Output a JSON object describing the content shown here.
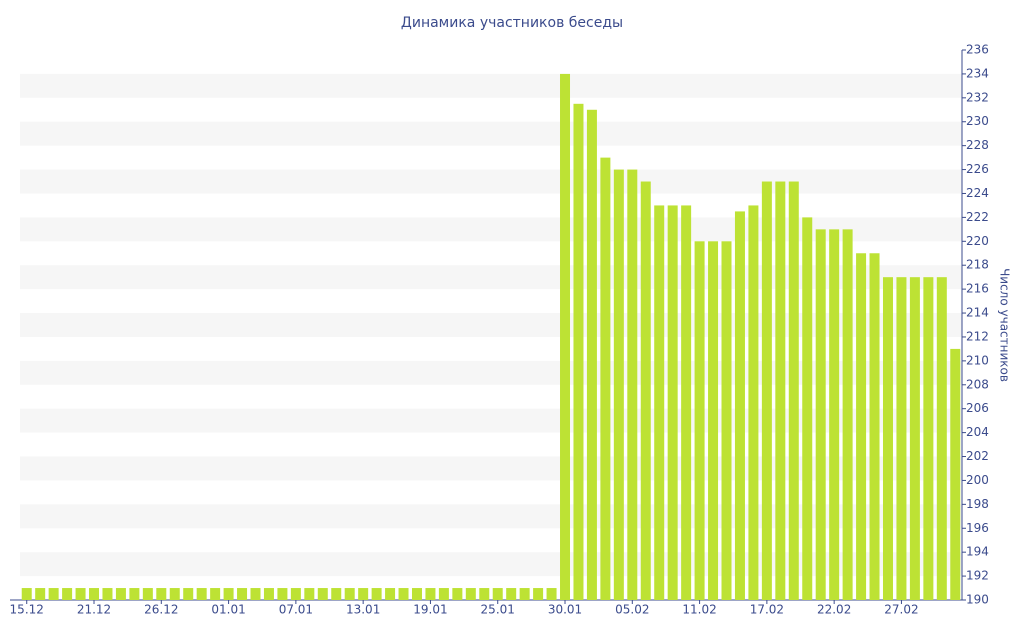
{
  "chart_data": {
    "type": "bar",
    "title": "Динамика участников беседы",
    "y_axis_label": "Число участников",
    "categories": [
      "15.12",
      null,
      null,
      null,
      null,
      "21.12",
      null,
      null,
      null,
      null,
      "26.12",
      null,
      null,
      null,
      null,
      "01.01",
      null,
      null,
      null,
      null,
      "07.01",
      null,
      null,
      null,
      null,
      "13.01",
      null,
      null,
      null,
      null,
      "19.01",
      null,
      null,
      null,
      null,
      "25.01",
      null,
      null,
      null,
      null,
      "30.01",
      null,
      null,
      null,
      null,
      "05.02",
      null,
      null,
      null,
      null,
      "11.02",
      null,
      null,
      null,
      null,
      "17.02",
      null,
      null,
      null,
      null,
      "22.02",
      null,
      null,
      null,
      null,
      "27.02",
      null,
      null,
      null,
      null
    ],
    "values": [
      191,
      191,
      191,
      191,
      191,
      191,
      191,
      191,
      191,
      191,
      191,
      191,
      191,
      191,
      191,
      191,
      191,
      191,
      191,
      191,
      191,
      191,
      191,
      191,
      191,
      191,
      191,
      191,
      191,
      191,
      191,
      191,
      191,
      191,
      191,
      191,
      191,
      191,
      191,
      191,
      234,
      231.5,
      231,
      227,
      226,
      226,
      225,
      223,
      223,
      223,
      220,
      220,
      220,
      222.5,
      223,
      225,
      225,
      225,
      222,
      221,
      221,
      221,
      219,
      219,
      217,
      217,
      217,
      217,
      217,
      211
    ],
    "color": "#bde234",
    "ylim": [
      190,
      236
    ],
    "yticks": [
      190,
      192,
      194,
      196,
      198,
      200,
      202,
      204,
      206,
      208,
      210,
      212,
      214,
      216,
      218,
      220,
      222,
      224,
      226,
      228,
      230,
      232,
      234,
      236
    ],
    "grid": true
  }
}
